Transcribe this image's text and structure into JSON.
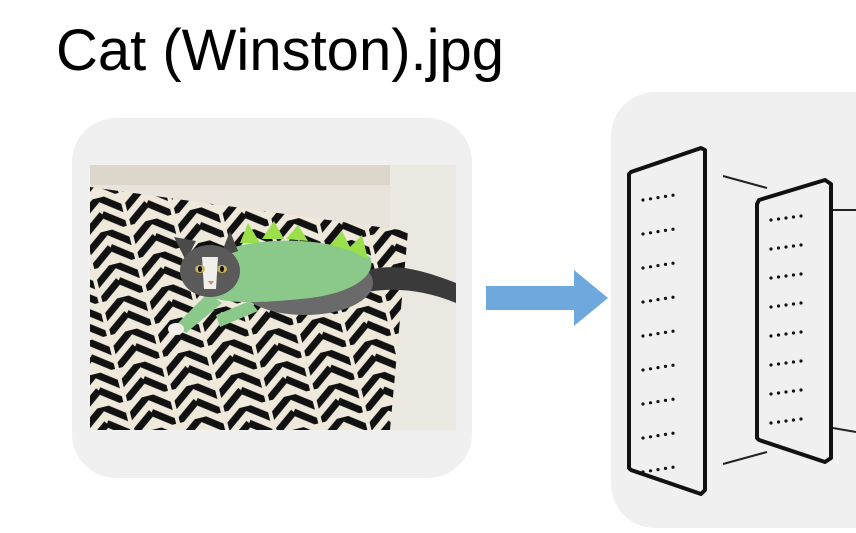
{
  "title": "Cat (Winston).jpg",
  "photo": {
    "subject": "cat-in-dinosaur-costume",
    "alt": "Cat (Winston).jpg"
  },
  "diagram": {
    "arrow_color": "#6fa8dc",
    "layer_count": 2
  },
  "colors": {
    "panel": "#f0f0f0",
    "arrow": "#6fa8dc",
    "costume": "#8bc98a",
    "spikes": "#9be04a"
  }
}
